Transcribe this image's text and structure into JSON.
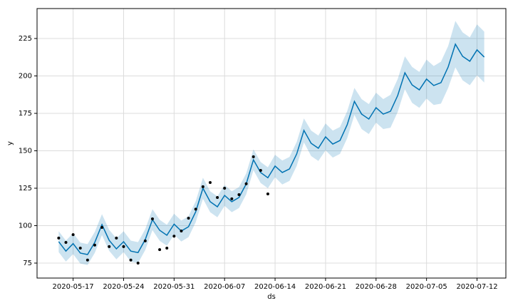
{
  "chart_data": {
    "type": "forecast",
    "xlabel": "ds",
    "ylabel": "y",
    "x": [
      "2020-05-15",
      "2020-05-16",
      "2020-05-17",
      "2020-05-18",
      "2020-05-19",
      "2020-05-20",
      "2020-05-21",
      "2020-05-22",
      "2020-05-23",
      "2020-05-24",
      "2020-05-25",
      "2020-05-26",
      "2020-05-27",
      "2020-05-28",
      "2020-05-29",
      "2020-05-30",
      "2020-05-31",
      "2020-06-01",
      "2020-06-02",
      "2020-06-03",
      "2020-06-04",
      "2020-06-05",
      "2020-06-06",
      "2020-06-07",
      "2020-06-08",
      "2020-06-09",
      "2020-06-10",
      "2020-06-11",
      "2020-06-12",
      "2020-06-13",
      "2020-06-14",
      "2020-06-15",
      "2020-06-16",
      "2020-06-17",
      "2020-06-18",
      "2020-06-19",
      "2020-06-20",
      "2020-06-21",
      "2020-06-22",
      "2020-06-23",
      "2020-06-24",
      "2020-06-25",
      "2020-06-26",
      "2020-06-27",
      "2020-06-28",
      "2020-06-29",
      "2020-06-30",
      "2020-07-01",
      "2020-07-02",
      "2020-07-03",
      "2020-07-04",
      "2020-07-05",
      "2020-07-06",
      "2020-07-07",
      "2020-07-08",
      "2020-07-09",
      "2020-07-10",
      "2020-07-11",
      "2020-07-12",
      "2020-07-13"
    ],
    "actual": [
      91.7,
      88.8,
      94,
      85,
      77,
      87,
      98.8,
      86,
      91.7,
      86,
      77,
      75,
      89.8,
      104.5,
      84,
      85,
      93,
      96.4,
      105,
      111,
      126,
      128.8,
      118.8,
      125,
      117.9,
      120.7,
      128,
      146,
      136.9,
      121.2,
      null,
      null,
      null,
      null,
      null,
      null,
      null,
      null,
      null,
      null,
      null,
      null,
      null,
      null,
      null,
      null,
      null,
      null,
      null,
      null,
      null,
      null,
      null,
      null,
      null,
      null,
      null,
      null,
      null,
      null
    ],
    "yhat": [
      89.3,
      83,
      88,
      81.7,
      80.7,
      88.8,
      100.7,
      90.2,
      84.5,
      89.3,
      83,
      82,
      90.7,
      104,
      96.9,
      93.6,
      101,
      96.4,
      99.3,
      109.3,
      125,
      116,
      112.6,
      120.2,
      116,
      118.8,
      127.9,
      144,
      135.5,
      132,
      139.8,
      135.5,
      137.9,
      147.9,
      163.6,
      155,
      151.7,
      159.3,
      154.5,
      156.9,
      167.4,
      183,
      174.5,
      171.2,
      178.8,
      174.5,
      176.4,
      186.9,
      202.1,
      194,
      190.7,
      197.9,
      193.6,
      195.5,
      206,
      221.2,
      213.1,
      209.8,
      217.4,
      212.6
    ],
    "yhat_lower": [
      82.3,
      76,
      81,
      74.7,
      73.7,
      81.8,
      93.7,
      83.2,
      77.5,
      82.3,
      76,
      75,
      83.7,
      97,
      89.9,
      86.6,
      94,
      89.4,
      92.3,
      102.3,
      118,
      109,
      105.6,
      113.2,
      109,
      111.8,
      120.9,
      137,
      128.5,
      125,
      132.3,
      127.5,
      129.9,
      139.9,
      155.6,
      146.5,
      143.2,
      150.3,
      145.5,
      147.9,
      158.4,
      174,
      164.5,
      161.2,
      168.8,
      164.5,
      165.4,
      175.9,
      191.1,
      182,
      178.7,
      184.9,
      180.6,
      181.5,
      192,
      205.7,
      197.1,
      193.8,
      200.4,
      195.6
    ],
    "yhat_upper": [
      96.3,
      90,
      95,
      88.7,
      87.7,
      95.8,
      107.7,
      97.2,
      91.5,
      96.3,
      90,
      89,
      97.7,
      111,
      103.9,
      100.6,
      108,
      103.4,
      106.3,
      116.3,
      132,
      123,
      119.6,
      127.2,
      123,
      125.8,
      134.9,
      151,
      142.5,
      139,
      147.3,
      143.5,
      145.9,
      155.9,
      171.6,
      163.5,
      160.2,
      168.3,
      163.5,
      165.9,
      176.4,
      192,
      184.5,
      181.2,
      188.8,
      184.5,
      187.4,
      197.9,
      213.1,
      206,
      202.7,
      210.9,
      206.6,
      209.5,
      220,
      236.7,
      229.1,
      225.8,
      234.4,
      229.6
    ],
    "point_color": "#000000",
    "line_color": "#0072B2",
    "band_color": "#0072B2",
    "xlim": [
      "2020-05-12",
      "2020-07-16"
    ],
    "xticks": [
      "2020-05-17",
      "2020-05-24",
      "2020-05-31",
      "2020-06-07",
      "2020-06-14",
      "2020-06-21",
      "2020-06-28",
      "2020-07-05",
      "2020-07-12"
    ],
    "ylim": [
      65,
      245
    ],
    "yticks": [
      75,
      100,
      125,
      150,
      175,
      200,
      225
    ],
    "grid": true
  }
}
